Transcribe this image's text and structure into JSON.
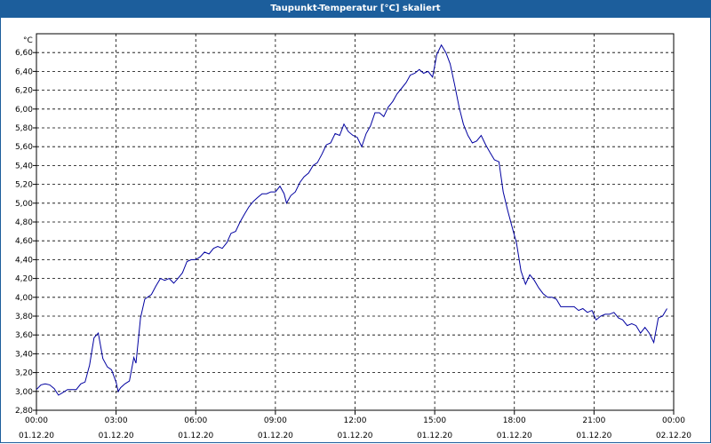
{
  "window": {
    "title": "Taupunkt-Temperatur [°C] skaliert"
  },
  "chart_data": {
    "type": "line",
    "title": "Taupunkt-Temperatur [°C] skaliert",
    "ylabel": "°C",
    "xlabel": "",
    "ylim": [
      2.8,
      6.8
    ],
    "xlim": [
      0,
      24
    ],
    "grid": true,
    "gridstyle": "dashed",
    "line_color": "#0000a0",
    "yticks": [
      "2,80",
      "3,00",
      "3,20",
      "3,40",
      "3,60",
      "3,80",
      "4,00",
      "4,20",
      "4,40",
      "4,60",
      "4,80",
      "5,00",
      "5,20",
      "5,40",
      "5,60",
      "5,80",
      "6,00",
      "6,20",
      "6,40",
      "6,60"
    ],
    "xticks": [
      {
        "time": "00:00",
        "date": "01.12.20"
      },
      {
        "time": "03:00",
        "date": "01.12.20"
      },
      {
        "time": "06:00",
        "date": "01.12.20"
      },
      {
        "time": "09:00",
        "date": "01.12.20"
      },
      {
        "time": "12:00",
        "date": "01.12.20"
      },
      {
        "time": "15:00",
        "date": "01.12.20"
      },
      {
        "time": "18:00",
        "date": "01.12.20"
      },
      {
        "time": "21:00",
        "date": "01.12.20"
      },
      {
        "time": "00:00",
        "date": "02.12.20"
      }
    ],
    "series": [
      {
        "points": [
          [
            0.0,
            3.02
          ],
          [
            0.17,
            3.07
          ],
          [
            0.33,
            3.08
          ],
          [
            0.5,
            3.07
          ],
          [
            0.67,
            3.03
          ],
          [
            0.83,
            2.96
          ],
          [
            1.0,
            2.99
          ],
          [
            1.17,
            3.02
          ],
          [
            1.33,
            3.02
          ],
          [
            1.5,
            3.02
          ],
          [
            1.67,
            3.08
          ],
          [
            1.83,
            3.1
          ],
          [
            2.0,
            3.28
          ],
          [
            2.17,
            3.57
          ],
          [
            2.33,
            3.62
          ],
          [
            2.5,
            3.35
          ],
          [
            2.67,
            3.26
          ],
          [
            2.83,
            3.23
          ],
          [
            3.0,
            3.1
          ],
          [
            3.08,
            3.0
          ],
          [
            3.17,
            3.04
          ],
          [
            3.33,
            3.08
          ],
          [
            3.5,
            3.11
          ],
          [
            3.67,
            3.36
          ],
          [
            3.75,
            3.3
          ],
          [
            3.92,
            3.78
          ],
          [
            4.08,
            3.98
          ],
          [
            4.33,
            4.03
          ],
          [
            4.5,
            4.12
          ],
          [
            4.67,
            4.2
          ],
          [
            4.83,
            4.18
          ],
          [
            5.0,
            4.2
          ],
          [
            5.17,
            4.15
          ],
          [
            5.33,
            4.2
          ],
          [
            5.5,
            4.26
          ],
          [
            5.67,
            4.38
          ],
          [
            5.83,
            4.4
          ],
          [
            6.0,
            4.4
          ],
          [
            6.17,
            4.43
          ],
          [
            6.33,
            4.48
          ],
          [
            6.5,
            4.46
          ],
          [
            6.67,
            4.52
          ],
          [
            6.83,
            4.54
          ],
          [
            7.0,
            4.52
          ],
          [
            7.17,
            4.58
          ],
          [
            7.33,
            4.68
          ],
          [
            7.5,
            4.7
          ],
          [
            7.67,
            4.8
          ],
          [
            7.83,
            4.88
          ],
          [
            8.0,
            4.96
          ],
          [
            8.17,
            5.02
          ],
          [
            8.33,
            5.06
          ],
          [
            8.5,
            5.1
          ],
          [
            8.67,
            5.1
          ],
          [
            8.83,
            5.12
          ],
          [
            9.0,
            5.12
          ],
          [
            9.17,
            5.18
          ],
          [
            9.33,
            5.1
          ],
          [
            9.42,
            5.0
          ],
          [
            9.58,
            5.08
          ],
          [
            9.75,
            5.12
          ],
          [
            9.92,
            5.22
          ],
          [
            10.08,
            5.28
          ],
          [
            10.25,
            5.32
          ],
          [
            10.42,
            5.4
          ],
          [
            10.58,
            5.43
          ],
          [
            10.75,
            5.52
          ],
          [
            10.92,
            5.62
          ],
          [
            11.08,
            5.64
          ],
          [
            11.25,
            5.74
          ],
          [
            11.42,
            5.72
          ],
          [
            11.58,
            5.84
          ],
          [
            11.75,
            5.76
          ],
          [
            11.92,
            5.72
          ],
          [
            12.08,
            5.7
          ],
          [
            12.25,
            5.6
          ],
          [
            12.42,
            5.74
          ],
          [
            12.58,
            5.82
          ],
          [
            12.75,
            5.96
          ],
          [
            12.92,
            5.96
          ],
          [
            13.08,
            5.92
          ],
          [
            13.25,
            6.02
          ],
          [
            13.42,
            6.08
          ],
          [
            13.58,
            6.16
          ],
          [
            13.75,
            6.22
          ],
          [
            13.92,
            6.28
          ],
          [
            14.08,
            6.36
          ],
          [
            14.25,
            6.38
          ],
          [
            14.42,
            6.42
          ],
          [
            14.58,
            6.38
          ],
          [
            14.75,
            6.4
          ],
          [
            14.92,
            6.34
          ],
          [
            15.08,
            6.58
          ],
          [
            15.25,
            6.68
          ],
          [
            15.42,
            6.6
          ],
          [
            15.58,
            6.48
          ],
          [
            15.75,
            6.26
          ],
          [
            15.92,
            6.02
          ],
          [
            16.08,
            5.84
          ],
          [
            16.25,
            5.72
          ],
          [
            16.42,
            5.64
          ],
          [
            16.58,
            5.66
          ],
          [
            16.75,
            5.72
          ],
          [
            16.92,
            5.62
          ],
          [
            17.08,
            5.54
          ],
          [
            17.25,
            5.46
          ],
          [
            17.42,
            5.44
          ],
          [
            17.58,
            5.12
          ],
          [
            17.75,
            4.92
          ],
          [
            17.92,
            4.74
          ],
          [
            18.08,
            4.58
          ],
          [
            18.25,
            4.28
          ],
          [
            18.42,
            4.14
          ],
          [
            18.58,
            4.24
          ],
          [
            18.75,
            4.18
          ],
          [
            18.92,
            4.1
          ],
          [
            19.08,
            4.04
          ],
          [
            19.25,
            4.0
          ],
          [
            19.42,
            4.0
          ],
          [
            19.58,
            3.98
          ],
          [
            19.75,
            3.9
          ],
          [
            19.92,
            3.9
          ],
          [
            20.08,
            3.9
          ],
          [
            20.25,
            3.9
          ],
          [
            20.42,
            3.86
          ],
          [
            20.58,
            3.88
          ],
          [
            20.75,
            3.84
          ],
          [
            20.92,
            3.86
          ],
          [
            21.08,
            3.76
          ],
          [
            21.25,
            3.8
          ],
          [
            21.42,
            3.82
          ],
          [
            21.58,
            3.82
          ],
          [
            21.75,
            3.84
          ],
          [
            21.92,
            3.78
          ],
          [
            22.08,
            3.76
          ],
          [
            22.25,
            3.7
          ],
          [
            22.42,
            3.72
          ],
          [
            22.58,
            3.7
          ],
          [
            22.75,
            3.62
          ],
          [
            22.92,
            3.68
          ],
          [
            23.08,
            3.62
          ],
          [
            23.25,
            3.52
          ],
          [
            23.42,
            3.78
          ],
          [
            23.58,
            3.8
          ],
          [
            23.75,
            3.88
          ]
        ]
      }
    ]
  }
}
